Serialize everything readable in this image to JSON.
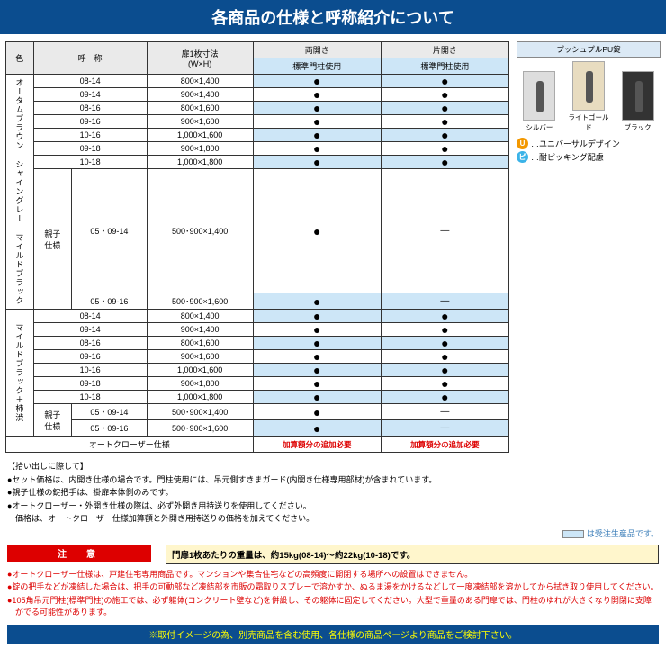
{
  "header_title": "各商品の仕様と呼称紹介について",
  "table": {
    "head": {
      "color": "色",
      "name": "呼　称",
      "size": "扉1枚寸法\n(W×H)",
      "double": "両開き",
      "single": "片開き",
      "std": "標準門柱使用"
    },
    "group1_label": "オータムブラウン\nシャイングレー\nマイルドブラック",
    "group2_label": "マイルドブラック＋柿渋",
    "oyako": "親子\n仕様",
    "rows1": [
      {
        "n": "08-14",
        "s": "800×1,400",
        "d": "●",
        "g": "●",
        "alt": true
      },
      {
        "n": "09-14",
        "s": "900×1,400",
        "d": "●",
        "g": "●",
        "alt": false
      },
      {
        "n": "08-16",
        "s": "800×1,600",
        "d": "●",
        "g": "●",
        "alt": true
      },
      {
        "n": "09-16",
        "s": "900×1,600",
        "d": "●",
        "g": "●",
        "alt": false
      },
      {
        "n": "10-16",
        "s": "1,000×1,600",
        "d": "●",
        "g": "●",
        "alt": true
      },
      {
        "n": "09-18",
        "s": "900×1,800",
        "d": "●",
        "g": "●",
        "alt": false
      },
      {
        "n": "10-18",
        "s": "1,000×1,800",
        "d": "●",
        "g": "●",
        "alt": true
      }
    ],
    "oyako1": [
      {
        "n": "05・09-14",
        "s": "500･900×1,400",
        "d": "●",
        "g": "—",
        "alt": false
      },
      {
        "n": "05・09-16",
        "s": "500･900×1,600",
        "d": "●",
        "g": "—",
        "alt": true
      }
    ],
    "rows2": [
      {
        "n": "08-14",
        "s": "800×1,400",
        "d": "●",
        "g": "●",
        "alt": true
      },
      {
        "n": "09-14",
        "s": "900×1,400",
        "d": "●",
        "g": "●",
        "alt": false
      },
      {
        "n": "08-16",
        "s": "800×1,600",
        "d": "●",
        "g": "●",
        "alt": true
      },
      {
        "n": "09-16",
        "s": "900×1,600",
        "d": "●",
        "g": "●",
        "alt": false
      },
      {
        "n": "10-16",
        "s": "1,000×1,600",
        "d": "●",
        "g": "●",
        "alt": true
      },
      {
        "n": "09-18",
        "s": "900×1,800",
        "d": "●",
        "g": "●",
        "alt": false
      },
      {
        "n": "10-18",
        "s": "1,000×1,800",
        "d": "●",
        "g": "●",
        "alt": true
      }
    ],
    "oyako2": [
      {
        "n": "05・09-14",
        "s": "500･900×1,400",
        "d": "●",
        "g": "—",
        "alt": false
      },
      {
        "n": "05・09-16",
        "s": "500･900×1,600",
        "d": "●",
        "g": "—",
        "alt": true
      }
    ],
    "auto_closer": "オートクローザー仕様",
    "extra_cost": "加算額分の追加必要"
  },
  "side": {
    "lock_title": "プッシュプルPU錠",
    "locks": [
      "シルバー",
      "ライトゴールド",
      "ブラック"
    ],
    "u": "…ユニバーサルデザイン",
    "p": "…耐ピッキング配慮"
  },
  "notes_title": "【拾い出しに際して】",
  "notes": [
    "●セット価格は、内開き仕様の場合です。門柱使用には、吊元側すきまガード(内開き仕様専用部材)が含まれています。",
    "●親子仕様の錠把手は、掛扉本体側のみです。",
    "●オートクローザー・外開き仕様の際は、必ず外開き用持送りを使用してください。",
    "　価格は、オートクローザー仕様加算額と外開き用持送りの価格を加えてください。"
  ],
  "legend": "は受注生産品です。",
  "weight": "門扉1枚あたりの重量は、約15kg(08-14)～約22kg(10-18)です。",
  "caution_title": "注　意",
  "cautions": [
    "●オートクローザー仕様は、戸建住宅専用商品です。マンションや集合住宅などの高頻度に開閉する場所への設置はできません。",
    "●錠の把手などが凍結した場合は、把手の可動部など凍結部を市販の霜取りスプレーで溶かすか、ぬるま湯をかけるなどして一度凍結部を溶かしてから拭き取り使用してください。",
    "●105角吊元門柱(標準門柱)の施工では、必ず躯体(コンクリート壁など)を併設し、その躯体に固定してください。大型で重量のある門扉では、門柱のゆれが大きくなり開閉に支障がでる可能性があります。"
  ],
  "footer": "※取付イメージの為、別売商品を含む使用、各仕様の商品ページより商品をご検討下さい。"
}
